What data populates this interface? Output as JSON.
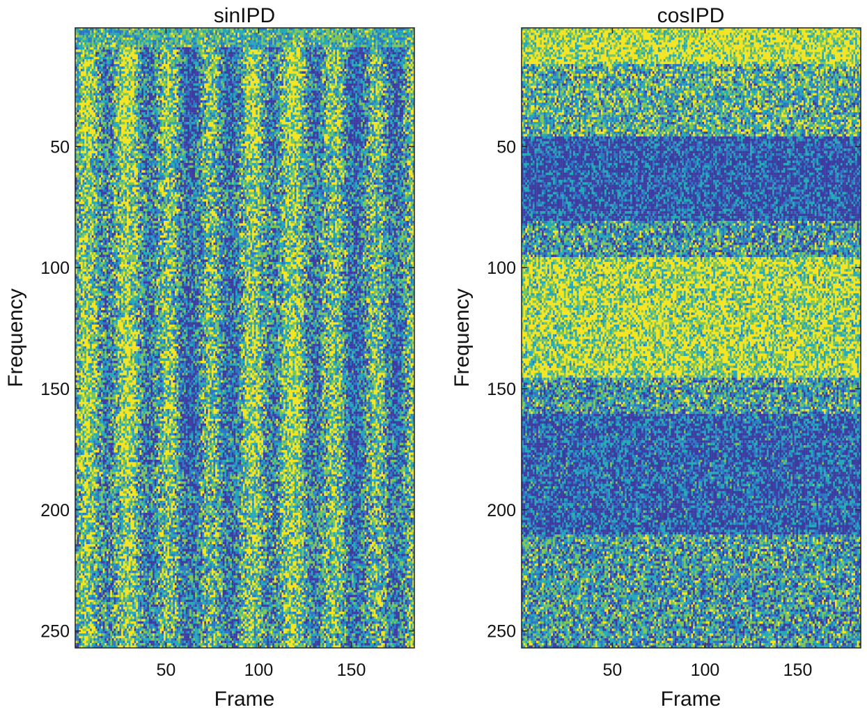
{
  "chart_data": [
    {
      "type": "heatmap",
      "title": "sinIPD",
      "xlabel": "Frame",
      "ylabel": "Frequency",
      "xlim": [
        1,
        184
      ],
      "ylim": [
        1,
        257
      ],
      "y_reversed": true,
      "x_ticks": [
        "50",
        "100",
        "150"
      ],
      "x_tick_values": [
        50,
        100,
        150
      ],
      "y_ticks": [
        "50",
        "100",
        "150",
        "200",
        "250"
      ],
      "y_tick_values": [
        50,
        100,
        150,
        200,
        250
      ],
      "colormap": "parula",
      "pattern": "vertical-stripes",
      "grid": false
    },
    {
      "type": "heatmap",
      "title": "cosIPD",
      "xlabel": "Frame",
      "ylabel": "Frequency",
      "xlim": [
        1,
        184
      ],
      "ylim": [
        1,
        257
      ],
      "y_reversed": true,
      "x_ticks": [
        "50",
        "100",
        "150"
      ],
      "x_tick_values": [
        50,
        100,
        150
      ],
      "y_ticks": [
        "50",
        "100",
        "150",
        "200",
        "250"
      ],
      "y_tick_values": [
        50,
        100,
        150,
        200,
        250
      ],
      "colormap": "parula",
      "pattern": "horizontal-bands",
      "grid": false
    }
  ],
  "colors": {
    "dark_blue": "#3b3ca0",
    "blue": "#2c77c2",
    "teal": "#25a9b8",
    "green": "#7dc45a",
    "yellow": "#f4e422"
  }
}
